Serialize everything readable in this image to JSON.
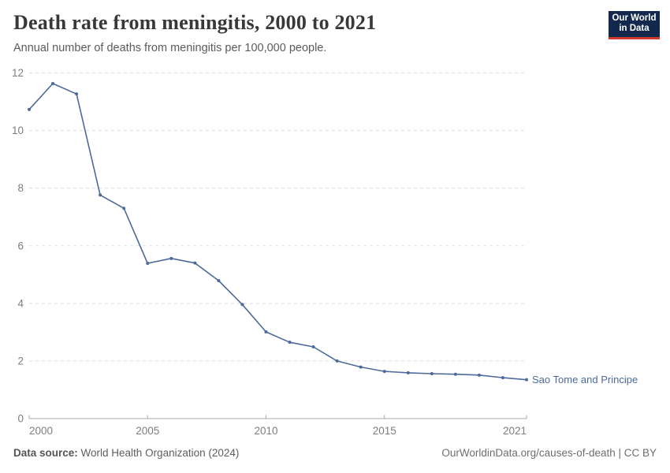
{
  "header": {
    "title": "Death rate from meningitis, 2000 to 2021",
    "subtitle": "Annual number of deaths from meningitis per 100,000 people."
  },
  "logo": {
    "line1": "Our World",
    "line2": "in Data",
    "bg_color": "#12294d",
    "accent_color": "#d23a2e"
  },
  "footer": {
    "source_label": "Data source:",
    "source_text": " World Health Organization (2024)",
    "credit": "OurWorldinData.org/causes-of-death | CC BY"
  },
  "chart_data": {
    "type": "line",
    "title": "Death rate from meningitis, 2000 to 2021",
    "xlabel": "",
    "ylabel": "Annual deaths from meningitis per 100,000 people",
    "xlim": [
      2000,
      2021
    ],
    "ylim": [
      0,
      12
    ],
    "x_ticks": [
      2000,
      2005,
      2010,
      2015,
      2021
    ],
    "y_ticks": [
      0,
      2,
      4,
      6,
      8,
      10,
      12
    ],
    "grid": "horizontal-dashed",
    "legend_position": "end-of-line-label",
    "colors": {
      "line": "#4c6a9c",
      "grid": "#dddddd",
      "axis": "#a8a8a8",
      "tick_text": "#7d7d7d"
    },
    "series": [
      {
        "name": "Sao Tome and Principe",
        "color": "#4c6a9c",
        "x": [
          2000,
          2001,
          2002,
          2003,
          2004,
          2005,
          2006,
          2007,
          2008,
          2009,
          2010,
          2011,
          2012,
          2013,
          2014,
          2015,
          2016,
          2017,
          2018,
          2019,
          2020,
          2021
        ],
        "values": [
          10.73,
          11.63,
          11.27,
          7.76,
          7.3,
          5.39,
          5.56,
          5.4,
          4.79,
          3.96,
          3.01,
          2.65,
          2.49,
          2.0,
          1.79,
          1.64,
          1.59,
          1.56,
          1.54,
          1.51,
          1.42,
          1.35
        ]
      }
    ]
  }
}
